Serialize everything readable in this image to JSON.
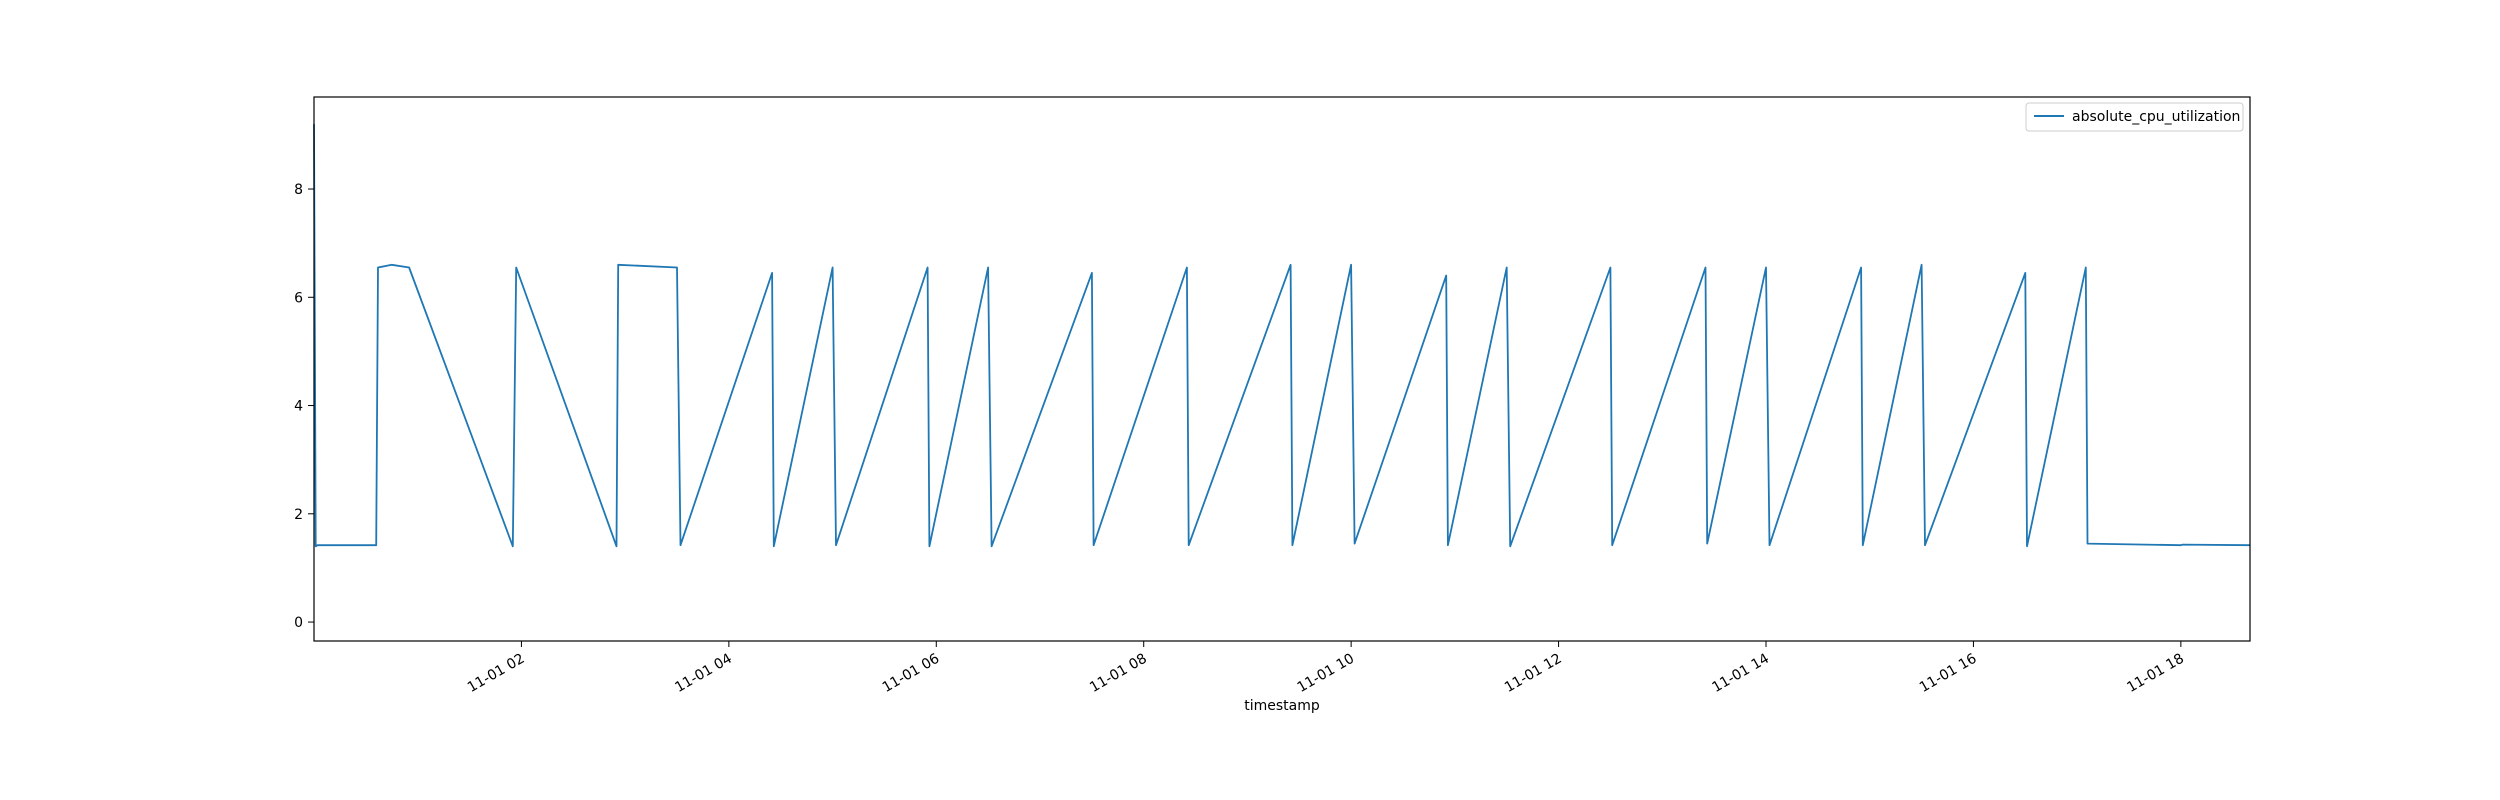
{
  "chart_data": {
    "type": "line",
    "title": "",
    "xlabel": "timestamp",
    "ylabel": "",
    "x_range": [
      "2019-11-01 00:00",
      "2019-11-01 18:40"
    ],
    "ylim": [
      -0.35,
      9.7
    ],
    "grid": false,
    "legend": {
      "position": "top-right",
      "entries": [
        "absolute_cpu_utilization"
      ]
    },
    "x_ticks": [
      {
        "at": "2019-11-01 02:00",
        "label": "11-01 02"
      },
      {
        "at": "2019-11-01 04:00",
        "label": "11-01 04"
      },
      {
        "at": "2019-11-01 06:00",
        "label": "11-01 06"
      },
      {
        "at": "2019-11-01 08:00",
        "label": "11-01 08"
      },
      {
        "at": "2019-11-01 10:00",
        "label": "11-01 10"
      },
      {
        "at": "2019-11-01 12:00",
        "label": "11-01 12"
      },
      {
        "at": "2019-11-01 14:00",
        "label": "11-01 14"
      },
      {
        "at": "2019-11-01 16:00",
        "label": "11-01 16"
      },
      {
        "at": "2019-11-01 18:00",
        "label": "11-01 18"
      }
    ],
    "y_ticks": [
      0,
      2,
      4,
      6,
      8
    ],
    "series": [
      {
        "name": "absolute_cpu_utilization",
        "color": "#1f77b4",
        "x": [
          "2019-11-01 00:00",
          "2019-11-01 00:01",
          "2019-11-01 00:02",
          "2019-11-01 00:36",
          "2019-11-01 00:37",
          "2019-11-01 00:45",
          "2019-11-01 00:55",
          "2019-11-01 01:55",
          "2019-11-01 01:57",
          "2019-11-01 02:55",
          "2019-11-01 02:56",
          "2019-11-01 03:30",
          "2019-11-01 03:32",
          "2019-11-01 04:25",
          "2019-11-01 04:26",
          "2019-11-01 05:00",
          "2019-11-01 05:02",
          "2019-11-01 05:55",
          "2019-11-01 05:56",
          "2019-11-01 06:30",
          "2019-11-01 06:32",
          "2019-11-01 07:30",
          "2019-11-01 07:31",
          "2019-11-01 08:25",
          "2019-11-01 08:26",
          "2019-11-01 09:25",
          "2019-11-01 09:26",
          "2019-11-01 10:00",
          "2019-11-01 10:02",
          "2019-11-01 10:55",
          "2019-11-01 10:56",
          "2019-11-01 11:30",
          "2019-11-01 11:32",
          "2019-11-01 12:30",
          "2019-11-01 12:31",
          "2019-11-01 13:25",
          "2019-11-01 13:26",
          "2019-11-01 14:00",
          "2019-11-01 14:02",
          "2019-11-01 14:55",
          "2019-11-01 14:56",
          "2019-11-01 15:30",
          "2019-11-01 15:32",
          "2019-11-01 16:30",
          "2019-11-01 16:31",
          "2019-11-01 17:05",
          "2019-11-01 17:06",
          "2019-11-01 18:00",
          "2019-11-01 18:01",
          "2019-11-01 18:40"
        ],
        "y": [
          9.2,
          1.4,
          1.42,
          1.42,
          6.55,
          6.6,
          6.55,
          1.4,
          6.55,
          1.4,
          6.6,
          6.55,
          1.42,
          6.45,
          1.4,
          6.55,
          1.42,
          6.55,
          1.4,
          6.55,
          1.4,
          6.45,
          1.42,
          6.55,
          1.42,
          6.6,
          1.42,
          6.6,
          1.45,
          6.4,
          1.42,
          6.55,
          1.4,
          6.55,
          1.42,
          6.55,
          1.45,
          6.55,
          1.42,
          6.55,
          1.42,
          6.6,
          1.42,
          6.45,
          1.4,
          6.55,
          1.45,
          1.42,
          1.43,
          1.42
        ]
      }
    ]
  }
}
